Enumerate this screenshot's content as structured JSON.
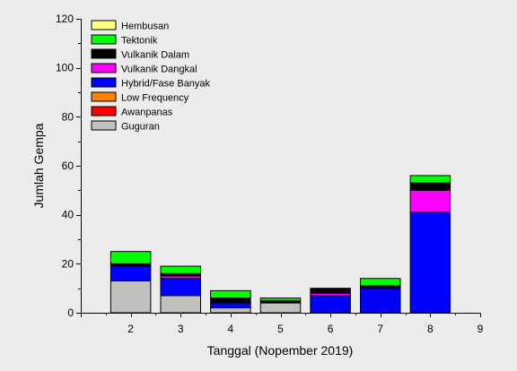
{
  "chart_data": {
    "type": "bar",
    "stacked": true,
    "xlabel": "Tanggal (Nopember 2019)",
    "ylabel": "Jumlah Gempa",
    "xlim": [
      1,
      9
    ],
    "x_ticks": [
      "2",
      "3",
      "4",
      "5",
      "6",
      "7",
      "8",
      "9"
    ],
    "ylim": [
      0,
      120
    ],
    "y_ticks": [
      "0",
      "20",
      "40",
      "60",
      "80",
      "100",
      "120"
    ],
    "categories": [
      "2",
      "3",
      "4",
      "5",
      "6",
      "7",
      "8"
    ],
    "grid": false,
    "legend_position": "top-left",
    "series": [
      {
        "name": "Guguran",
        "color": "#c0c0c0",
        "values": [
          13,
          7,
          2,
          4,
          0,
          0,
          0
        ]
      },
      {
        "name": "Awanpanas",
        "color": "#ff0000",
        "values": [
          0,
          0,
          0,
          0,
          0,
          0,
          0
        ]
      },
      {
        "name": "Low Frequency",
        "color": "#ff8000",
        "values": [
          0,
          0,
          0,
          0,
          0,
          0,
          0
        ]
      },
      {
        "name": "Hybrid/Fase Banyak",
        "color": "#0000ff",
        "values": [
          6,
          7,
          2,
          0,
          7,
          10,
          41
        ]
      },
      {
        "name": "Vulkanik Dangkal",
        "color": "#ff00ff",
        "values": [
          0,
          1,
          0,
          0,
          1,
          0,
          9
        ]
      },
      {
        "name": "Vulkanik Dalam",
        "color": "#000000",
        "values": [
          1,
          1,
          2,
          1,
          2,
          1,
          3
        ]
      },
      {
        "name": "Tektonik",
        "color": "#00ff00",
        "values": [
          5,
          3,
          3,
          1,
          0,
          3,
          3
        ]
      },
      {
        "name": "Hembusan",
        "color": "#ffff80",
        "values": [
          0,
          0,
          0,
          0,
          0,
          0,
          0
        ]
      }
    ],
    "legend_order": [
      "Hembusan",
      "Tektonik",
      "Vulkanik Dalam",
      "Vulkanik Dangkal",
      "Hybrid/Fase Banyak",
      "Low Frequency",
      "Awanpanas",
      "Guguran"
    ]
  }
}
